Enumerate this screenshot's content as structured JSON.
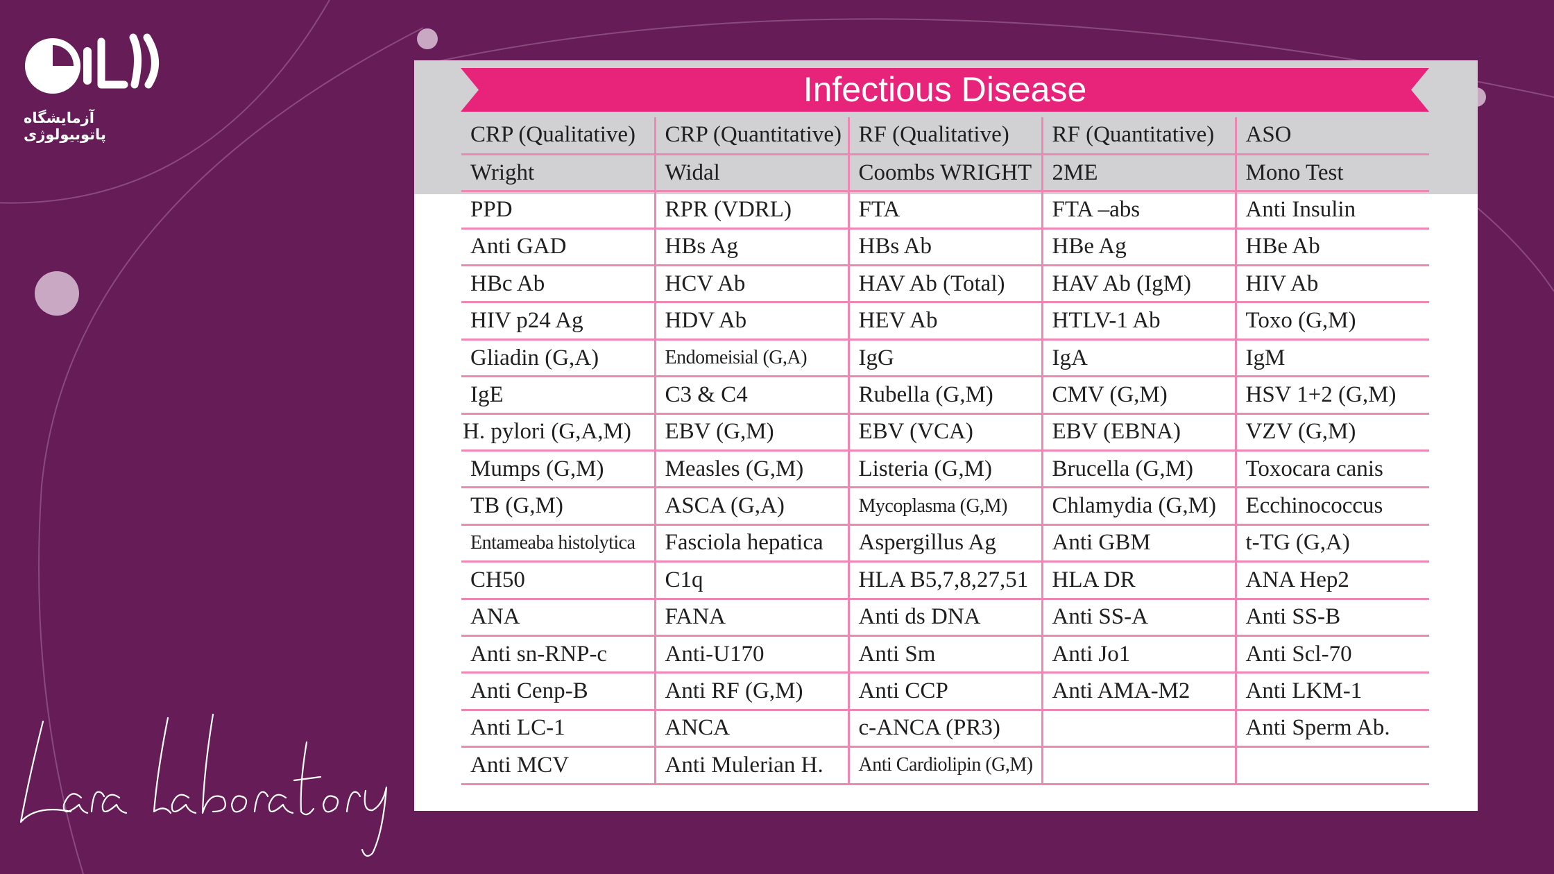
{
  "brand": {
    "logo_text": "لارا",
    "subtitle": "آزمایشگاه پاتوبیولوژی",
    "signature": "Lara laboratory"
  },
  "colors": {
    "background": "#661d57",
    "banner": "#e8247a",
    "grid_line": "#ee87b3",
    "header_band": "#d1d1d3"
  },
  "card": {
    "title": "Infectious Disease",
    "rows": [
      [
        "CRP (Qualitative)",
        "CRP (Quantitative)",
        "RF (Qualitative)",
        "RF (Quantitative)",
        "ASO"
      ],
      [
        "Wright",
        "Widal",
        "Coombs WRIGHT",
        "2ME",
        "Mono Test"
      ],
      [
        "PPD",
        "RPR (VDRL)",
        "FTA",
        "FTA –abs",
        "Anti Insulin"
      ],
      [
        "Anti GAD",
        "HBs Ag",
        "HBs Ab",
        "HBe Ag",
        "HBe Ab"
      ],
      [
        "HBc Ab",
        "HCV Ab",
        "HAV Ab (Total)",
        "HAV Ab (IgM)",
        "HIV Ab"
      ],
      [
        "HIV p24 Ag",
        "HDV Ab",
        "HEV Ab",
        "HTLV-1 Ab",
        "Toxo (G,M)"
      ],
      [
        "Gliadin (G,A)",
        "Endomeisial (G,A)",
        "IgG",
        "IgA",
        "IgM"
      ],
      [
        "IgE",
        "C3 & C4",
        "Rubella (G,M)",
        "CMV (G,M)",
        "HSV 1+2 (G,M)"
      ],
      [
        "H. pylori (G,A,M)",
        "EBV (G,M)",
        "EBV (VCA)",
        "EBV (EBNA)",
        "VZV (G,M)"
      ],
      [
        "Mumps (G,M)",
        "Measles (G,M)",
        "Listeria (G,M)",
        "Brucella (G,M)",
        "Toxocara canis"
      ],
      [
        "TB (G,M)",
        "ASCA (G,A)",
        "Mycoplasma (G,M)",
        "Chlamydia (G,M)",
        "Ecchinococcus"
      ],
      [
        "Entameaba histolytica",
        "Fasciola hepatica",
        "Aspergillus Ag",
        "Anti GBM",
        "t-TG (G,A)"
      ],
      [
        "CH50",
        "C1q",
        "HLA B5,7,8,27,51",
        "HLA DR",
        "ANA Hep2"
      ],
      [
        "ANA",
        "FANA",
        "Anti ds DNA",
        "Anti SS-A",
        "Anti SS-B"
      ],
      [
        "Anti sn-RNP-c",
        "Anti-U170",
        "Anti Sm",
        "Anti Jo1",
        "Anti Scl-70"
      ],
      [
        "Anti Cenp-B",
        "Anti RF (G,M)",
        "Anti CCP",
        "Anti AMA-M2",
        "Anti LKM-1"
      ],
      [
        "Anti LC-1",
        "ANCA",
        "c-ANCA (PR3)",
        "",
        "Anti Sperm Ab."
      ],
      [
        "Anti MCV",
        "Anti Mulerian H.",
        "Anti Cardiolipin (G,M)",
        "",
        ""
      ]
    ]
  }
}
